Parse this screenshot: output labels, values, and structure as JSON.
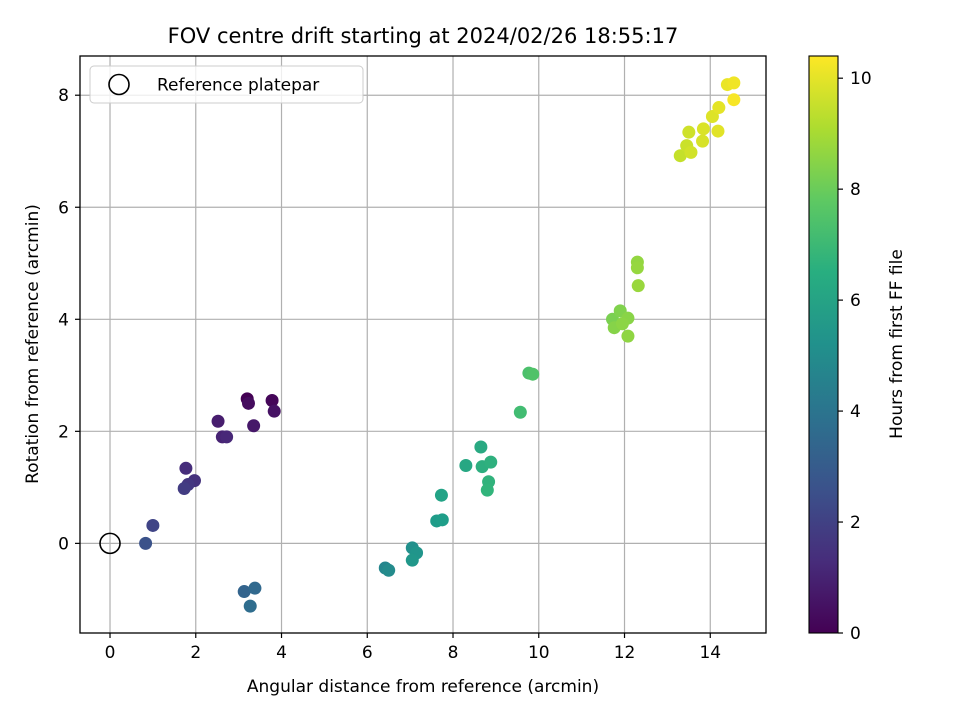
{
  "chart_data": {
    "type": "scatter",
    "title": "FOV centre drift starting at 2024/02/26 18:55:17",
    "xlabel": "Angular distance from reference (arcmin)",
    "ylabel": "Rotation from reference (arcmin)",
    "xlim": [
      -0.7,
      15.3
    ],
    "ylim": [
      -1.6,
      8.7
    ],
    "xticks": [
      0,
      2,
      4,
      6,
      8,
      10,
      12,
      14
    ],
    "yticks": [
      0,
      2,
      4,
      6,
      8
    ],
    "grid": true,
    "legend": {
      "placement": "top-left",
      "entries": [
        "Reference platepar"
      ]
    },
    "reference_point": {
      "name": "Reference platepar",
      "x": 0,
      "y": 0
    },
    "colorbar": {
      "label": "Hours from first FF file",
      "range": [
        0,
        10.4
      ],
      "ticks": [
        0,
        2,
        4,
        6,
        8,
        10
      ],
      "colormap": "viridis"
    },
    "points": [
      {
        "x": 3.2,
        "y": 2.58,
        "hours": 0.0
      },
      {
        "x": 3.78,
        "y": 2.55,
        "hours": 0.17
      },
      {
        "x": 3.23,
        "y": 2.5,
        "hours": 0.33
      },
      {
        "x": 3.83,
        "y": 2.36,
        "hours": 0.5
      },
      {
        "x": 3.35,
        "y": 2.1,
        "hours": 0.67
      },
      {
        "x": 2.52,
        "y": 2.18,
        "hours": 0.83
      },
      {
        "x": 2.62,
        "y": 1.9,
        "hours": 1.0
      },
      {
        "x": 2.72,
        "y": 1.9,
        "hours": 1.17
      },
      {
        "x": 1.77,
        "y": 1.34,
        "hours": 1.33
      },
      {
        "x": 1.97,
        "y": 1.12,
        "hours": 1.5
      },
      {
        "x": 1.82,
        "y": 1.05,
        "hours": 1.67
      },
      {
        "x": 1.73,
        "y": 0.98,
        "hours": 1.83
      },
      {
        "x": 1.0,
        "y": 0.32,
        "hours": 2.1
      },
      {
        "x": 0.83,
        "y": 0.0,
        "hours": 2.6
      },
      {
        "x": 3.13,
        "y": -0.86,
        "hours": 3.3
      },
      {
        "x": 3.38,
        "y": -0.8,
        "hours": 3.5
      },
      {
        "x": 3.27,
        "y": -1.12,
        "hours": 3.7
      },
      {
        "x": 6.42,
        "y": -0.44,
        "hours": 4.8
      },
      {
        "x": 6.5,
        "y": -0.48,
        "hours": 5.0
      },
      {
        "x": 7.05,
        "y": -0.08,
        "hours": 5.2
      },
      {
        "x": 7.15,
        "y": -0.17,
        "hours": 5.4
      },
      {
        "x": 7.05,
        "y": -0.3,
        "hours": 5.5
      },
      {
        "x": 7.62,
        "y": 0.4,
        "hours": 5.7
      },
      {
        "x": 7.75,
        "y": 0.42,
        "hours": 5.8
      },
      {
        "x": 7.73,
        "y": 0.86,
        "hours": 6.0
      },
      {
        "x": 8.3,
        "y": 1.39,
        "hours": 6.2
      },
      {
        "x": 8.65,
        "y": 1.72,
        "hours": 6.3
      },
      {
        "x": 8.68,
        "y": 1.37,
        "hours": 6.5
      },
      {
        "x": 8.88,
        "y": 1.45,
        "hours": 6.6
      },
      {
        "x": 8.83,
        "y": 1.1,
        "hours": 6.7
      },
      {
        "x": 8.8,
        "y": 0.95,
        "hours": 6.8
      },
      {
        "x": 9.57,
        "y": 2.34,
        "hours": 7.2
      },
      {
        "x": 9.77,
        "y": 3.04,
        "hours": 7.4
      },
      {
        "x": 9.86,
        "y": 3.02,
        "hours": 7.5
      },
      {
        "x": 11.72,
        "y": 4.0,
        "hours": 8.3
      },
      {
        "x": 11.9,
        "y": 4.15,
        "hours": 8.4
      },
      {
        "x": 11.76,
        "y": 3.85,
        "hours": 8.5
      },
      {
        "x": 12.08,
        "y": 4.02,
        "hours": 8.55
      },
      {
        "x": 11.95,
        "y": 3.92,
        "hours": 8.6
      },
      {
        "x": 12.08,
        "y": 3.7,
        "hours": 8.65
      },
      {
        "x": 12.3,
        "y": 5.02,
        "hours": 8.7
      },
      {
        "x": 12.3,
        "y": 4.92,
        "hours": 8.75
      },
      {
        "x": 12.32,
        "y": 4.6,
        "hours": 8.8
      },
      {
        "x": 13.3,
        "y": 6.92,
        "hours": 9.5
      },
      {
        "x": 13.45,
        "y": 7.1,
        "hours": 9.6
      },
      {
        "x": 13.5,
        "y": 7.34,
        "hours": 9.65
      },
      {
        "x": 13.55,
        "y": 6.98,
        "hours": 9.7
      },
      {
        "x": 13.82,
        "y": 7.18,
        "hours": 9.8
      },
      {
        "x": 13.84,
        "y": 7.4,
        "hours": 9.85
      },
      {
        "x": 14.05,
        "y": 7.62,
        "hours": 9.9
      },
      {
        "x": 14.18,
        "y": 7.36,
        "hours": 9.95
      },
      {
        "x": 14.2,
        "y": 7.78,
        "hours": 10.0
      },
      {
        "x": 14.4,
        "y": 8.19,
        "hours": 10.1
      },
      {
        "x": 14.55,
        "y": 8.22,
        "hours": 10.2
      },
      {
        "x": 14.55,
        "y": 7.92,
        "hours": 10.3
      }
    ]
  }
}
